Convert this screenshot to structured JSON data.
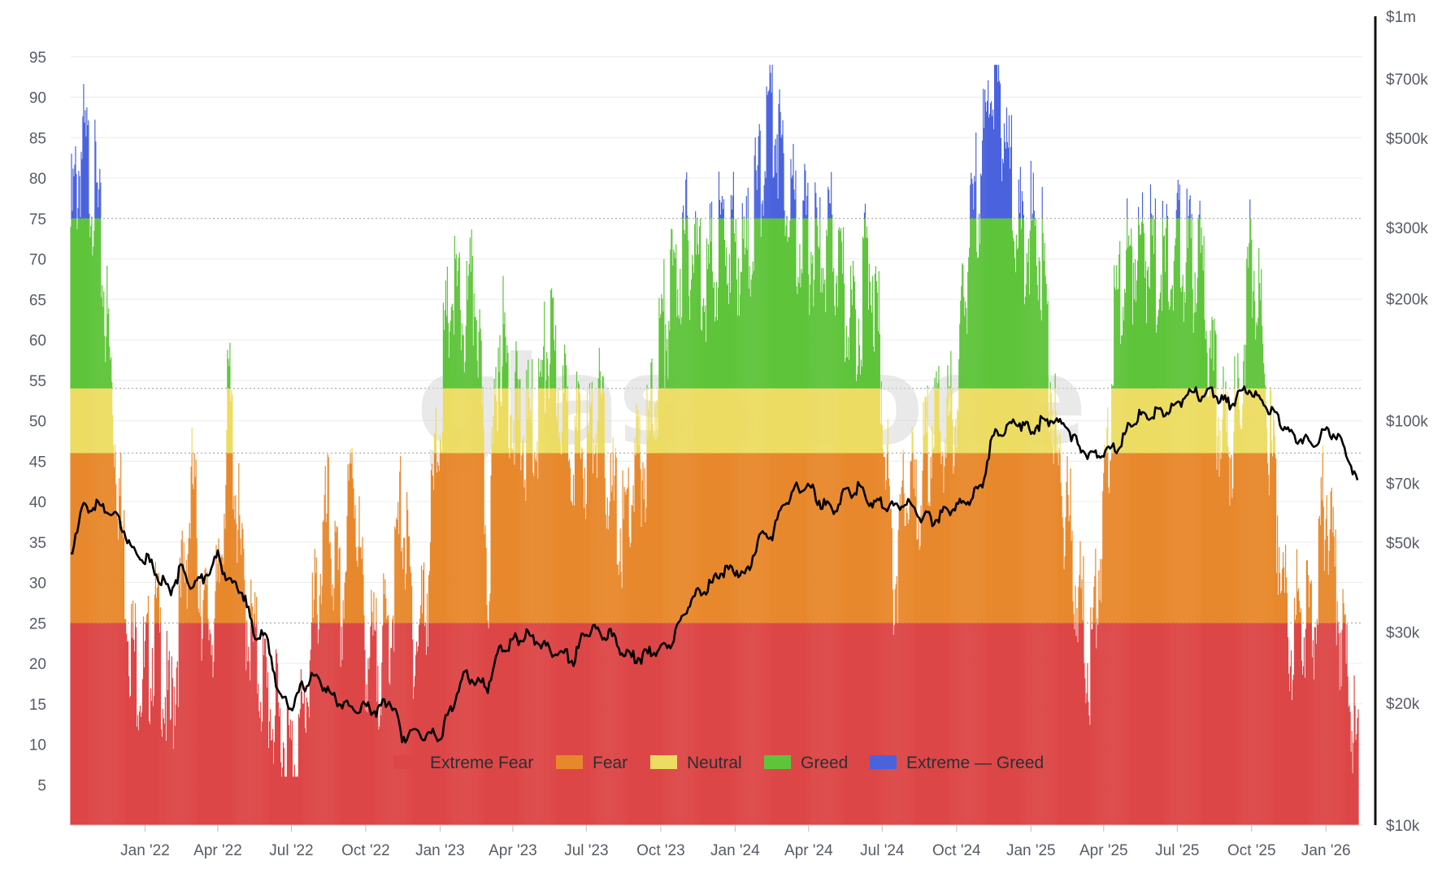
{
  "watermark": "glassnode",
  "chart_data": {
    "type": "bar",
    "title": "",
    "xlabel": "",
    "ylabel": "",
    "ylim": [
      0,
      100
    ],
    "y_ticks": [
      5,
      10,
      15,
      20,
      25,
      30,
      35,
      40,
      45,
      50,
      55,
      60,
      65,
      70,
      75,
      80,
      85,
      90,
      95
    ],
    "y2_scale": "log",
    "y2lim": [
      10000,
      1000000
    ],
    "y2_ticks": [
      {
        "value": 10000,
        "label": "$10k"
      },
      {
        "value": 20000,
        "label": "$20k"
      },
      {
        "value": 30000,
        "label": "$30k"
      },
      {
        "value": 50000,
        "label": "$50k"
      },
      {
        "value": 70000,
        "label": "$70k"
      },
      {
        "value": 100000,
        "label": "$100k"
      },
      {
        "value": 200000,
        "label": "$200k"
      },
      {
        "value": 300000,
        "label": "$300k"
      },
      {
        "value": 500000,
        "label": "$500k"
      },
      {
        "value": 700000,
        "label": "$700k"
      },
      {
        "value": 1000000,
        "label": "$1m"
      }
    ],
    "xlim": [
      "2021-10-01",
      "2026-02-15"
    ],
    "x_ticks": [
      {
        "date": "2022-01-01",
        "label": "Jan '22"
      },
      {
        "date": "2022-04-01",
        "label": "Apr '22"
      },
      {
        "date": "2022-07-01",
        "label": "Jul '22"
      },
      {
        "date": "2022-10-01",
        "label": "Oct '22"
      },
      {
        "date": "2023-01-01",
        "label": "Jan '23"
      },
      {
        "date": "2023-04-01",
        "label": "Apr '23"
      },
      {
        "date": "2023-07-01",
        "label": "Jul '23"
      },
      {
        "date": "2023-10-01",
        "label": "Oct '23"
      },
      {
        "date": "2024-01-01",
        "label": "Jan '24"
      },
      {
        "date": "2024-04-01",
        "label": "Apr '24"
      },
      {
        "date": "2024-07-01",
        "label": "Jul '24"
      },
      {
        "date": "2024-10-01",
        "label": "Oct '24"
      },
      {
        "date": "2025-01-01",
        "label": "Jan '25"
      },
      {
        "date": "2025-04-01",
        "label": "Apr '25"
      },
      {
        "date": "2025-07-01",
        "label": "Jul '25"
      },
      {
        "date": "2025-10-01",
        "label": "Oct '25"
      },
      {
        "date": "2026-01-01",
        "label": "Jan '26"
      }
    ],
    "zone_thresholds": [
      25,
      46,
      54,
      75
    ],
    "grid": true,
    "legend_position": "bottom-center",
    "legend": [
      {
        "label": "Extreme Fear",
        "color": "#dd4646"
      },
      {
        "label": "Fear",
        "color": "#e8882c"
      },
      {
        "label": "Neutral",
        "color": "#ecdc62"
      },
      {
        "label": "Greed",
        "color": "#5ec43a"
      },
      {
        "label": "Extreme — Greed",
        "color": "#4a63dd"
      }
    ],
    "sentiment_series": {
      "name": "",
      "axis": "left",
      "x": [
        "2021-10-01",
        "2021-10-15",
        "2021-11-01",
        "2021-11-15",
        "2021-12-01",
        "2021-12-15",
        "2022-01-01",
        "2022-01-15",
        "2022-02-01",
        "2022-02-15",
        "2022-03-01",
        "2022-03-15",
        "2022-04-01",
        "2022-04-15",
        "2022-05-01",
        "2022-05-15",
        "2022-06-01",
        "2022-06-15",
        "2022-07-01",
        "2022-07-15",
        "2022-08-01",
        "2022-08-15",
        "2022-09-01",
        "2022-09-15",
        "2022-10-01",
        "2022-10-15",
        "2022-11-01",
        "2022-11-15",
        "2022-12-01",
        "2022-12-15",
        "2023-01-01",
        "2023-01-15",
        "2023-02-01",
        "2023-02-15",
        "2023-03-01",
        "2023-03-15",
        "2023-04-01",
        "2023-04-15",
        "2023-05-01",
        "2023-05-15",
        "2023-06-01",
        "2023-06-15",
        "2023-07-01",
        "2023-07-15",
        "2023-08-01",
        "2023-08-15",
        "2023-09-01",
        "2023-09-15",
        "2023-10-01",
        "2023-10-15",
        "2023-11-01",
        "2023-11-15",
        "2023-12-01",
        "2023-12-15",
        "2024-01-01",
        "2024-01-15",
        "2024-02-01",
        "2024-02-15",
        "2024-03-01",
        "2024-03-15",
        "2024-04-01",
        "2024-04-15",
        "2024-05-01",
        "2024-05-15",
        "2024-06-01",
        "2024-06-15",
        "2024-07-01",
        "2024-07-15",
        "2024-08-01",
        "2024-08-15",
        "2024-09-01",
        "2024-09-15",
        "2024-10-01",
        "2024-10-15",
        "2024-11-01",
        "2024-11-15",
        "2024-12-01",
        "2024-12-15",
        "2025-01-01",
        "2025-01-15",
        "2025-02-01",
        "2025-02-15",
        "2025-03-01",
        "2025-03-15",
        "2025-04-01",
        "2025-04-15",
        "2025-05-01",
        "2025-05-15",
        "2025-06-01",
        "2025-06-15",
        "2025-07-01",
        "2025-07-15",
        "2025-08-01",
        "2025-08-15",
        "2025-09-01",
        "2025-09-15",
        "2025-10-01",
        "2025-10-15",
        "2025-11-01",
        "2025-11-15",
        "2025-12-01",
        "2025-12-15",
        "2026-01-01",
        "2026-01-15",
        "2026-02-01",
        "2026-02-10"
      ],
      "values": [
        74,
        84,
        78,
        62,
        40,
        22,
        18,
        25,
        12,
        28,
        42,
        25,
        26,
        54,
        30,
        22,
        16,
        12,
        8,
        12,
        28,
        38,
        25,
        46,
        22,
        20,
        25,
        40,
        22,
        28,
        52,
        66,
        62,
        67,
        30,
        62,
        52,
        48,
        50,
        60,
        52,
        48,
        46,
        52,
        40,
        36,
        44,
        46,
        60,
        66,
        72,
        70,
        68,
        73,
        72,
        70,
        80,
        90,
        82,
        75,
        72,
        70,
        72,
        65,
        62,
        72,
        56,
        30,
        42,
        40,
        50,
        48,
        52,
        70,
        82,
        94,
        86,
        72,
        74,
        70,
        46,
        38,
        28,
        20,
        38,
        62,
        70,
        72,
        70,
        68,
        72,
        70,
        68,
        54,
        48,
        50,
        72,
        58,
        40,
        22,
        28,
        25,
        42,
        28,
        14,
        8
      ]
    },
    "price_series": {
      "name": "",
      "axis": "right",
      "x": [
        "2021-10-01",
        "2021-10-15",
        "2021-11-01",
        "2021-11-15",
        "2021-12-01",
        "2021-12-15",
        "2022-01-01",
        "2022-01-15",
        "2022-02-01",
        "2022-02-15",
        "2022-03-01",
        "2022-03-15",
        "2022-04-01",
        "2022-04-15",
        "2022-05-01",
        "2022-05-15",
        "2022-06-01",
        "2022-06-15",
        "2022-07-01",
        "2022-07-15",
        "2022-08-01",
        "2022-08-15",
        "2022-09-01",
        "2022-09-15",
        "2022-10-01",
        "2022-10-15",
        "2022-11-01",
        "2022-11-15",
        "2022-12-01",
        "2022-12-15",
        "2023-01-01",
        "2023-01-15",
        "2023-02-01",
        "2023-02-15",
        "2023-03-01",
        "2023-03-15",
        "2023-04-01",
        "2023-04-15",
        "2023-05-01",
        "2023-05-15",
        "2023-06-01",
        "2023-06-15",
        "2023-07-01",
        "2023-07-15",
        "2023-08-01",
        "2023-08-15",
        "2023-09-01",
        "2023-09-15",
        "2023-10-01",
        "2023-10-15",
        "2023-11-01",
        "2023-11-15",
        "2023-12-01",
        "2023-12-15",
        "2024-01-01",
        "2024-01-15",
        "2024-02-01",
        "2024-02-15",
        "2024-03-01",
        "2024-03-15",
        "2024-04-01",
        "2024-04-15",
        "2024-05-01",
        "2024-05-15",
        "2024-06-01",
        "2024-06-15",
        "2024-07-01",
        "2024-07-15",
        "2024-08-01",
        "2024-08-15",
        "2024-09-01",
        "2024-09-15",
        "2024-10-01",
        "2024-10-15",
        "2024-11-01",
        "2024-11-15",
        "2024-12-01",
        "2024-12-15",
        "2025-01-01",
        "2025-01-15",
        "2025-02-01",
        "2025-02-15",
        "2025-03-01",
        "2025-03-15",
        "2025-04-01",
        "2025-04-15",
        "2025-05-01",
        "2025-05-15",
        "2025-06-01",
        "2025-06-15",
        "2025-07-01",
        "2025-07-15",
        "2025-08-01",
        "2025-08-15",
        "2025-09-01",
        "2025-09-15",
        "2025-10-01",
        "2025-10-15",
        "2025-11-01",
        "2025-11-15",
        "2025-12-01",
        "2025-12-15",
        "2026-01-01",
        "2026-01-15",
        "2026-02-01",
        "2026-02-10"
      ],
      "values": [
        47000,
        60000,
        62000,
        60000,
        57000,
        48000,
        46000,
        42000,
        38000,
        43000,
        39000,
        41000,
        46000,
        40000,
        38000,
        30000,
        29000,
        21000,
        19500,
        22000,
        23500,
        21500,
        20000,
        19500,
        19500,
        19200,
        20500,
        16500,
        17000,
        16800,
        16600,
        19500,
        23500,
        22500,
        22000,
        27000,
        28500,
        29500,
        29000,
        27000,
        26800,
        25500,
        30500,
        30000,
        29500,
        26500,
        25800,
        26500,
        27000,
        28500,
        34500,
        37000,
        39000,
        42500,
        43000,
        41500,
        52000,
        52000,
        62000,
        68000,
        69000,
        63000,
        60000,
        66000,
        68000,
        64000,
        62000,
        61000,
        64000,
        58000,
        57000,
        59000,
        62000,
        63000,
        69000,
        91000,
        96000,
        100000,
        94000,
        100000,
        100000,
        96000,
        86000,
        82000,
        83000,
        85000,
        95000,
        103000,
        104000,
        105000,
        108000,
        118000,
        115000,
        117000,
        110000,
        115000,
        120000,
        110000,
        103000,
        94000,
        90000,
        88000,
        94000,
        92000,
        78000,
        70000
      ]
    }
  }
}
